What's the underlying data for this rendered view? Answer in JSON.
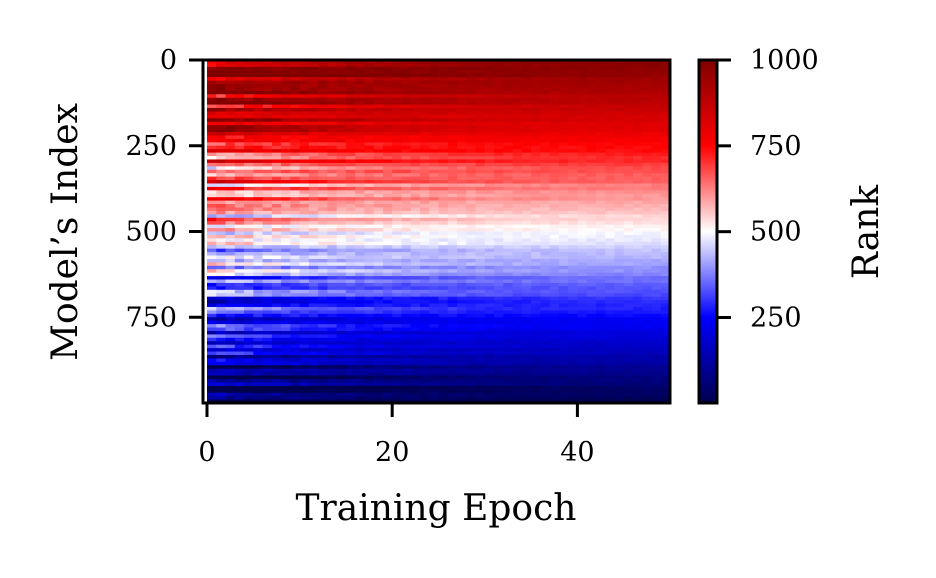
{
  "chart_data": {
    "type": "heatmap",
    "title": "",
    "xlabel": "Training Epoch",
    "ylabel": "Model’s Index",
    "x_range": [
      0,
      50
    ],
    "y_range": [
      0,
      1000
    ],
    "y_inverted": true,
    "x_ticks": [
      0,
      20,
      40
    ],
    "y_ticks": [
      0,
      250,
      500,
      750
    ],
    "colorbar": {
      "label": "Rank",
      "range": [
        1,
        1000
      ],
      "ticks": [
        250,
        500,
        750,
        1000
      ],
      "colormap": "seismic",
      "colors": [
        "#00004c",
        "#0000ff",
        "#ffffff",
        "#ff0000",
        "#800000"
      ]
    },
    "grid": false,
    "description_values": {
      "rows": 1000,
      "epochs": 50
    }
  }
}
